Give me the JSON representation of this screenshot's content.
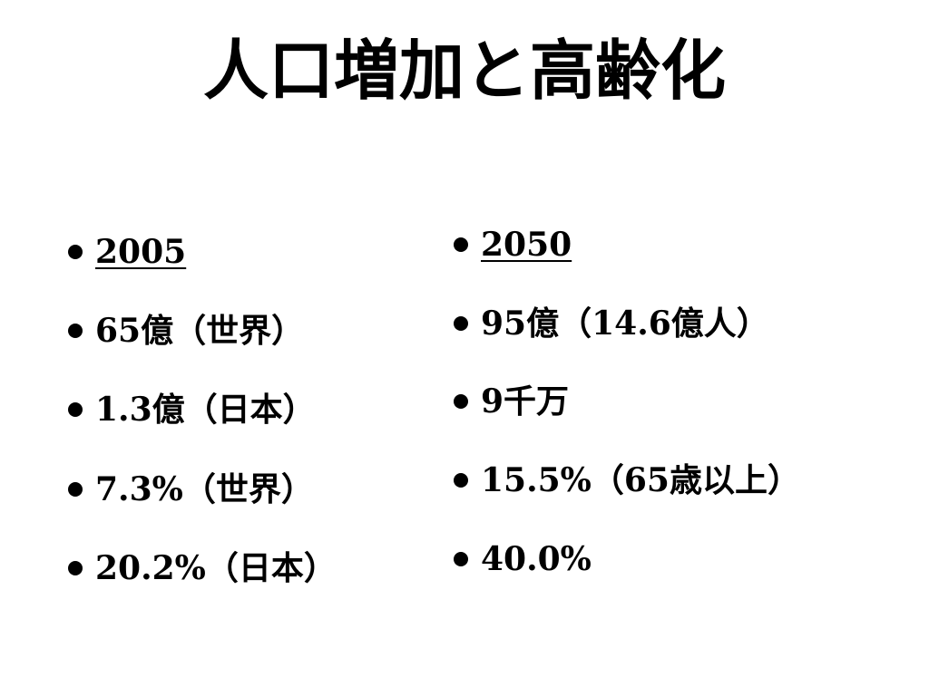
{
  "title": "人口増加と高齢化",
  "columns": [
    {
      "items": [
        "2005",
        "65億（世界）",
        "1.3億（日本）",
        "7.3%（世界）",
        "20.2%（日本）"
      ]
    },
    {
      "items": [
        "2050",
        "95億（14.6億人）",
        "9千万",
        "15.5%（65歳以上）",
        "40.0%"
      ]
    }
  ]
}
